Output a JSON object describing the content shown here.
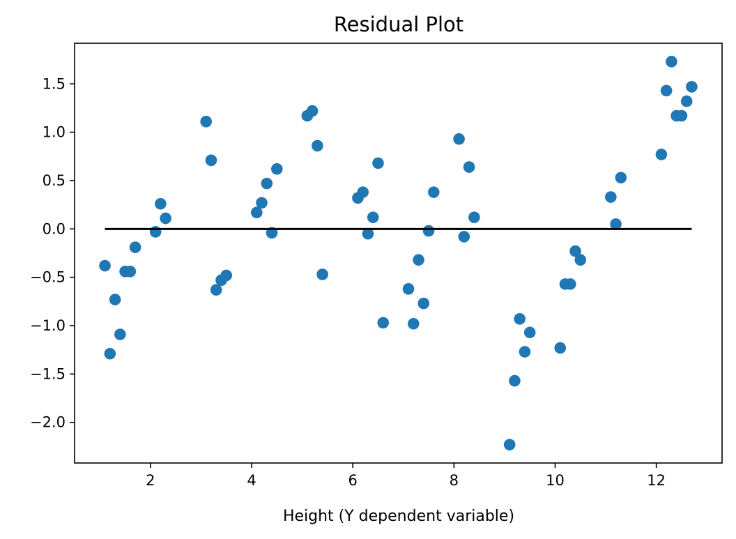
{
  "chart_data": {
    "type": "scatter",
    "title": "Residual Plot",
    "xlabel": "Height (Y dependent variable)",
    "ylabel": "",
    "xlim": [
      0.5,
      13.3
    ],
    "ylim": [
      -2.42,
      1.92
    ],
    "xticks": [
      2,
      4,
      6,
      8,
      10,
      12
    ],
    "yticks": [
      -2.0,
      -1.5,
      -1.0,
      -0.5,
      0.0,
      0.5,
      1.0,
      1.5
    ],
    "xtick_labels": [
      "2",
      "4",
      "6",
      "8",
      "10",
      "12"
    ],
    "ytick_labels": [
      "−2.0",
      "−1.5",
      "−1.0",
      "−0.5",
      "0.0",
      "0.5",
      "1.0",
      "1.5"
    ],
    "grid": false,
    "point_color": "#1f77b4",
    "line_color": "#000000",
    "reference_line": {
      "x": [
        1.1,
        12.7
      ],
      "y": [
        0,
        0
      ]
    },
    "points": [
      {
        "x": 1.1,
        "y": -0.38
      },
      {
        "x": 1.2,
        "y": -1.29
      },
      {
        "x": 1.3,
        "y": -0.73
      },
      {
        "x": 1.4,
        "y": -1.09
      },
      {
        "x": 1.5,
        "y": -0.44
      },
      {
        "x": 1.6,
        "y": -0.44
      },
      {
        "x": 1.7,
        "y": -0.19
      },
      {
        "x": 2.1,
        "y": -0.03
      },
      {
        "x": 2.2,
        "y": 0.26
      },
      {
        "x": 2.3,
        "y": 0.11
      },
      {
        "x": 3.1,
        "y": 1.11
      },
      {
        "x": 3.2,
        "y": 0.71
      },
      {
        "x": 3.3,
        "y": -0.63
      },
      {
        "x": 3.4,
        "y": -0.53
      },
      {
        "x": 3.5,
        "y": -0.48
      },
      {
        "x": 4.1,
        "y": 0.17
      },
      {
        "x": 4.2,
        "y": 0.27
      },
      {
        "x": 4.3,
        "y": 0.47
      },
      {
        "x": 4.4,
        "y": -0.04
      },
      {
        "x": 4.5,
        "y": 0.62
      },
      {
        "x": 5.1,
        "y": 1.17
      },
      {
        "x": 5.2,
        "y": 1.22
      },
      {
        "x": 5.3,
        "y": 0.86
      },
      {
        "x": 5.4,
        "y": -0.47
      },
      {
        "x": 6.1,
        "y": 0.32
      },
      {
        "x": 6.2,
        "y": 0.38
      },
      {
        "x": 6.3,
        "y": -0.05
      },
      {
        "x": 6.4,
        "y": 0.12
      },
      {
        "x": 6.5,
        "y": 0.68
      },
      {
        "x": 6.6,
        "y": -0.97
      },
      {
        "x": 7.1,
        "y": -0.62
      },
      {
        "x": 7.2,
        "y": -0.98
      },
      {
        "x": 7.3,
        "y": -0.32
      },
      {
        "x": 7.4,
        "y": -0.77
      },
      {
        "x": 7.5,
        "y": -0.02
      },
      {
        "x": 7.6,
        "y": 0.38
      },
      {
        "x": 8.1,
        "y": 0.93
      },
      {
        "x": 8.2,
        "y": -0.08
      },
      {
        "x": 8.3,
        "y": 0.64
      },
      {
        "x": 8.4,
        "y": 0.12
      },
      {
        "x": 9.1,
        "y": -2.23
      },
      {
        "x": 9.2,
        "y": -1.57
      },
      {
        "x": 9.3,
        "y": -0.93
      },
      {
        "x": 9.4,
        "y": -1.27
      },
      {
        "x": 9.5,
        "y": -1.07
      },
      {
        "x": 10.1,
        "y": -1.23
      },
      {
        "x": 10.2,
        "y": -0.57
      },
      {
        "x": 10.3,
        "y": -0.57
      },
      {
        "x": 10.4,
        "y": -0.23
      },
      {
        "x": 10.5,
        "y": -0.32
      },
      {
        "x": 11.1,
        "y": 0.33
      },
      {
        "x": 11.2,
        "y": 0.05
      },
      {
        "x": 11.3,
        "y": 0.53
      },
      {
        "x": 12.1,
        "y": 0.77
      },
      {
        "x": 12.2,
        "y": 1.43
      },
      {
        "x": 12.3,
        "y": 1.73
      },
      {
        "x": 12.4,
        "y": 1.17
      },
      {
        "x": 12.5,
        "y": 1.17
      },
      {
        "x": 12.6,
        "y": 1.32
      },
      {
        "x": 12.7,
        "y": 1.47
      }
    ]
  }
}
